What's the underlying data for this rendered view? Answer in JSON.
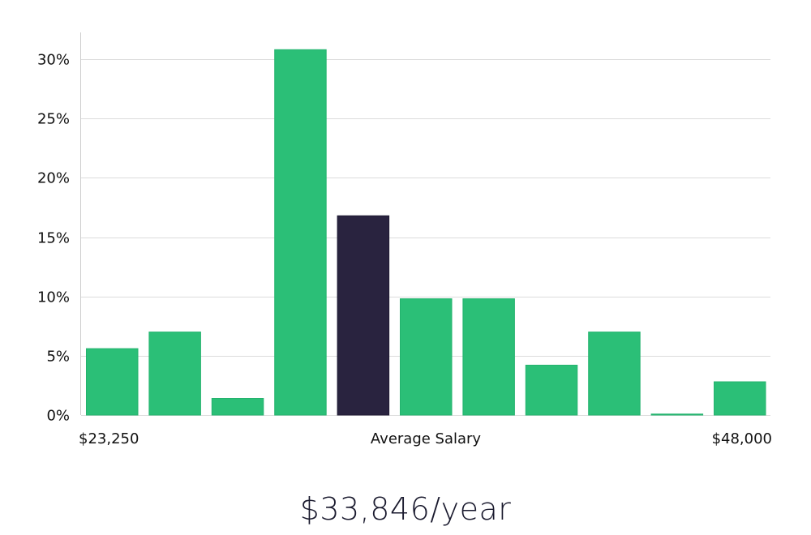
{
  "chart_data": {
    "type": "bar",
    "values": [
      5.6,
      7.0,
      1.4,
      30.8,
      16.8,
      9.8,
      9.8,
      4.2,
      7.0,
      0.05,
      2.8
    ],
    "highlight_index": 4,
    "ylim": [
      0,
      30
    ],
    "yticks": [
      "0%",
      "5%",
      "10%",
      "15%",
      "20%",
      "25%",
      "30%"
    ],
    "ytick_values": [
      0,
      5,
      10,
      15,
      20,
      25,
      30
    ],
    "x_min_label": "$23,250",
    "x_center_label": "Average Salary",
    "x_max_label": "$48,000",
    "grid": true,
    "colors": {
      "bar": "#2bbf77",
      "highlight": "#29233f",
      "grid": "#dcdcdc",
      "axis": "#cccccc"
    }
  },
  "headline": "$33,846/year"
}
